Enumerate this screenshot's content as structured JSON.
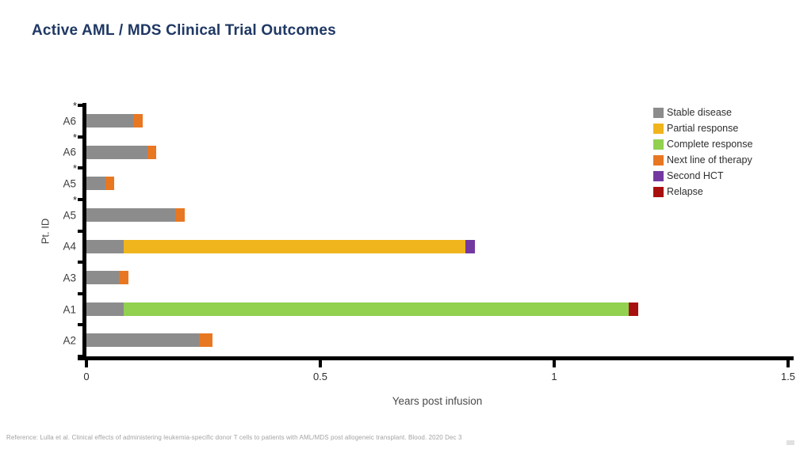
{
  "page": {
    "title": "Active AML / MDS Clinical Trial Outcomes",
    "footer_reference": "Reference: Lulla et al. Clinical effects of administering leukemia-specific donor T cells to patients with AML/MDS post allogeneic transplant. Blood. 2020 Dec 3"
  },
  "chart_data": {
    "type": "bar",
    "orientation": "horizontal",
    "stacked": true,
    "title": "Active AML / MDS Clinical Trial Outcomes",
    "xlabel": "Years post infusion",
    "ylabel": "Pt. ID",
    "xlim": [
      0,
      1.5
    ],
    "xticks": [
      {
        "value": 0,
        "label": "0"
      },
      {
        "value": 0.5,
        "label": "0.5"
      },
      {
        "value": 1,
        "label": "1"
      },
      {
        "value": 1.5,
        "label": "1.5"
      }
    ],
    "grid": false,
    "legend_position": "top-right",
    "series_colors": {
      "Stable disease": "#8c8c8c",
      "Partial response": "#f0b51c",
      "Complete response": "#92d050",
      "Next line of therapy": "#e87722",
      "Second HCT": "#7339a0",
      "Relapse": "#a8100f"
    },
    "legend": [
      {
        "label": "Stable disease",
        "color": "#8c8c8c"
      },
      {
        "label": "Partial response",
        "color": "#f0b51c"
      },
      {
        "label": "Complete response",
        "color": "#92d050"
      },
      {
        "label": "Next line of therapy",
        "color": "#e87722"
      },
      {
        "label": "Second HCT",
        "color": "#7339a0"
      },
      {
        "label": "Relapse",
        "color": "#a8100f"
      }
    ],
    "bars": [
      {
        "patient": "A6",
        "asterisk": true,
        "segments": [
          {
            "series": "Stable disease",
            "value": 0.1
          },
          {
            "series": "Next line of therapy",
            "value": 0.02
          }
        ]
      },
      {
        "patient": "A6",
        "asterisk": true,
        "segments": [
          {
            "series": "Stable disease",
            "value": 0.13
          },
          {
            "series": "Next line of therapy",
            "value": 0.02
          }
        ]
      },
      {
        "patient": "A5",
        "asterisk": true,
        "segments": [
          {
            "series": "Stable disease",
            "value": 0.04
          },
          {
            "series": "Next line of therapy",
            "value": 0.02
          }
        ]
      },
      {
        "patient": "A5",
        "asterisk": true,
        "segments": [
          {
            "series": "Stable disease",
            "value": 0.19
          },
          {
            "series": "Next line of therapy",
            "value": 0.02
          }
        ]
      },
      {
        "patient": "A4",
        "asterisk": false,
        "segments": [
          {
            "series": "Stable disease",
            "value": 0.08
          },
          {
            "series": "Partial response",
            "value": 0.73
          },
          {
            "series": "Second HCT",
            "value": 0.02
          }
        ]
      },
      {
        "patient": "A3",
        "asterisk": false,
        "segments": [
          {
            "series": "Stable disease",
            "value": 0.07
          },
          {
            "series": "Next line of therapy",
            "value": 0.02
          }
        ]
      },
      {
        "patient": "A1",
        "asterisk": false,
        "segments": [
          {
            "series": "Stable disease",
            "value": 0.08
          },
          {
            "series": "Complete response",
            "value": 1.08
          },
          {
            "series": "Relapse",
            "value": 0.02
          }
        ]
      },
      {
        "patient": "A2",
        "asterisk": false,
        "segments": [
          {
            "series": "Stable disease",
            "value": 0.24
          },
          {
            "series": "Next line of therapy",
            "value": 0.03
          }
        ]
      }
    ],
    "asterisk_symbol": "*"
  },
  "colors": {
    "title": "#1F3864",
    "axis": "#000000",
    "footer_text": "#a3a3a3"
  }
}
